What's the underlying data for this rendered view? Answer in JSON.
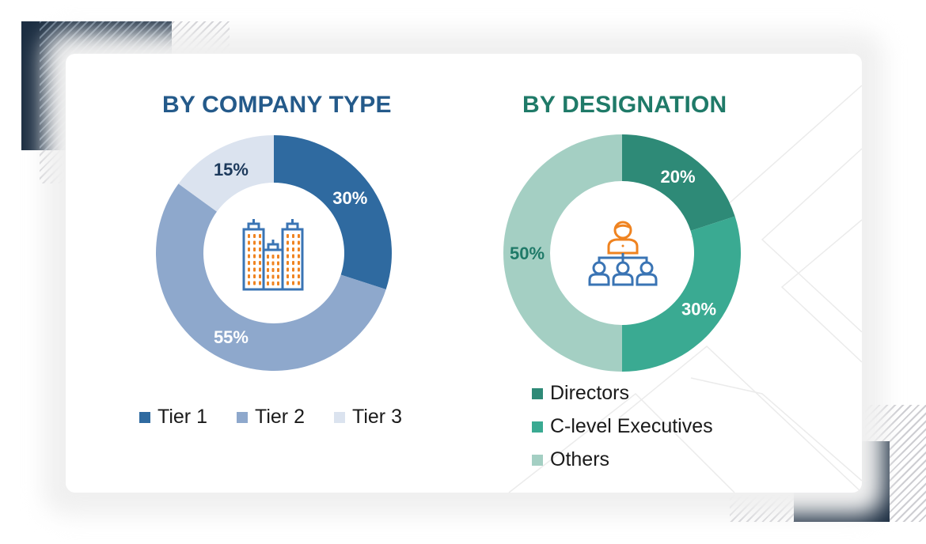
{
  "chart_data": [
    {
      "type": "pie",
      "variant": "donut",
      "title": "BY COMPANY TYPE",
      "categories": [
        "Tier 1",
        "Tier 2",
        "Tier 3"
      ],
      "values": [
        30,
        55,
        15
      ],
      "labels": [
        "30%",
        "55%",
        "15%"
      ],
      "colors": [
        "#2f6aa0",
        "#8ea8cc",
        "#dbe3ef"
      ],
      "center_icon": "office-buildings-icon",
      "legend_position": "bottom"
    },
    {
      "type": "pie",
      "variant": "donut",
      "title": "BY DESIGNATION",
      "categories": [
        "Directors",
        "C-level Executives",
        "Others"
      ],
      "values": [
        20,
        30,
        50
      ],
      "labels": [
        "20%",
        "30%",
        "50%"
      ],
      "colors": [
        "#2e8a77",
        "#3aaa92",
        "#a4cfc3"
      ],
      "center_icon": "org-hierarchy-icon",
      "legend_position": "bottom"
    }
  ],
  "company": {
    "title": "BY COMPANY TYPE",
    "slices": [
      {
        "name": "Tier 1",
        "value": 30,
        "label": "30%",
        "color": "#2f6aa0",
        "label_color": "#ffffff"
      },
      {
        "name": "Tier 2",
        "value": 55,
        "label": "55%",
        "color": "#8ea8cc",
        "label_color": "#ffffff"
      },
      {
        "name": "Tier 3",
        "value": 15,
        "label": "15%",
        "color": "#dbe3ef",
        "label_color": "#1d3a5c"
      }
    ],
    "legend": [
      {
        "label": "Tier 1",
        "color": "#2f6aa0"
      },
      {
        "label": "Tier 2",
        "color": "#8ea8cc"
      },
      {
        "label": "Tier 3",
        "color": "#dbe3ef"
      }
    ]
  },
  "designation": {
    "title": "BY DESIGNATION",
    "slices": [
      {
        "name": "Directors",
        "value": 20,
        "label": "20%",
        "color": "#2e8a77",
        "label_color": "#ffffff"
      },
      {
        "name": "C-level Executives",
        "value": 30,
        "label": "30%",
        "color": "#3aaa92",
        "label_color": "#ffffff"
      },
      {
        "name": "Others",
        "value": 50,
        "label": "50%",
        "color": "#a4cfc3",
        "label_color": "#1f7a68"
      }
    ],
    "legend": [
      {
        "label": "Directors",
        "color": "#2e8a77"
      },
      {
        "label": "C-level Executives",
        "color": "#3aaa92"
      },
      {
        "label": "Others",
        "color": "#a4cfc3"
      }
    ]
  },
  "theme": {
    "navy": "#1c2e42",
    "icon_blue": "#3a74b4",
    "icon_orange": "#ef8320"
  }
}
